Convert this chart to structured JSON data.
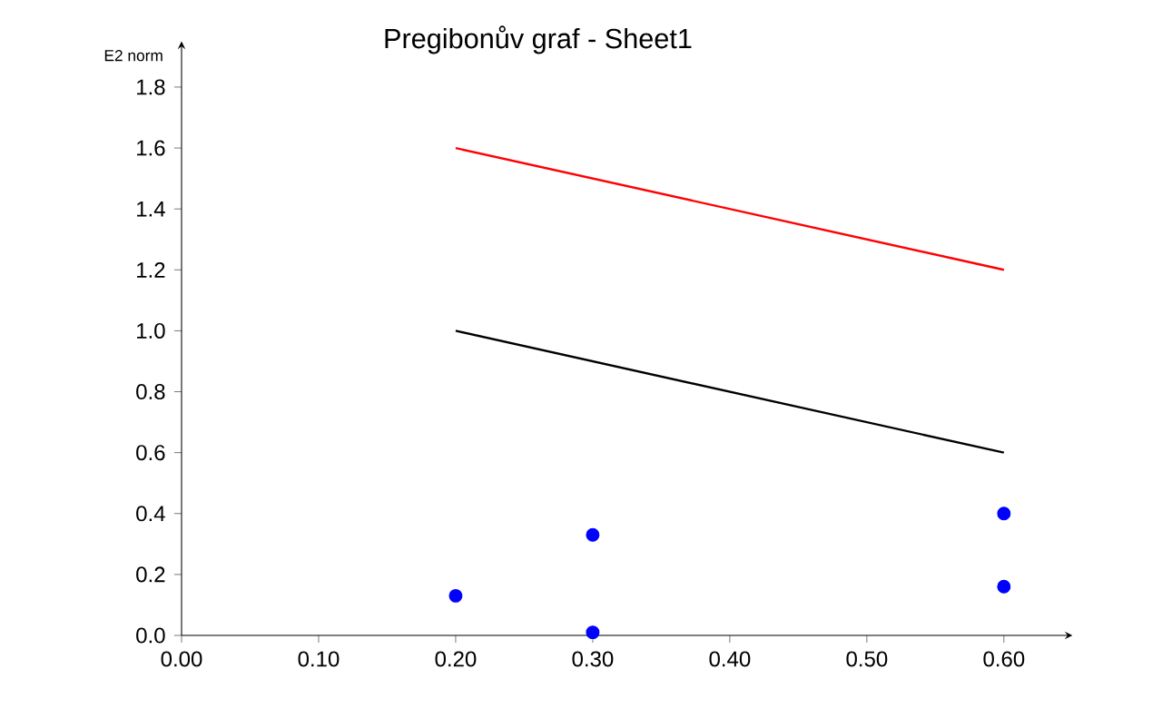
{
  "chart_data": {
    "type": "line",
    "title": "Pregibonův graf - Sheet1",
    "ylabel": "E2 norm",
    "xlim": [
      0,
      0.65
    ],
    "ylim": [
      0,
      1.95
    ],
    "xticks": [
      {
        "value": 0,
        "label": "0.00"
      },
      {
        "value": 0.1,
        "label": "0.10"
      },
      {
        "value": 0.2,
        "label": "0.20"
      },
      {
        "value": 0.3,
        "label": "0.30"
      },
      {
        "value": 0.4,
        "label": "0.40"
      },
      {
        "value": 0.5,
        "label": "0.50"
      },
      {
        "value": 0.6,
        "label": "0.60"
      }
    ],
    "yticks": [
      {
        "value": 0,
        "label": "0.0"
      },
      {
        "value": 0.2,
        "label": "0.2"
      },
      {
        "value": 0.4,
        "label": "0.4"
      },
      {
        "value": 0.6,
        "label": "0.6"
      },
      {
        "value": 0.8,
        "label": "0.8"
      },
      {
        "value": 1,
        "label": "1.0"
      },
      {
        "value": 1.2,
        "label": "1.2"
      },
      {
        "value": 1.4,
        "label": "1.4"
      },
      {
        "value": 1.6,
        "label": "1.6"
      },
      {
        "value": 1.8,
        "label": "1.8"
      }
    ],
    "series": [
      {
        "color": "#ff0000",
        "x": [
          0.2,
          0.6
        ],
        "values": [
          1.6,
          1.2
        ]
      },
      {
        "color": "#000000",
        "x": [
          0.2,
          0.6
        ],
        "values": [
          1.0,
          0.6
        ]
      },
      {
        "type": "scatter",
        "color": "#0000ff",
        "x": [
          0.2,
          0.3,
          0.3,
          0.6,
          0.6
        ],
        "values": [
          0.13,
          0.33,
          0.01,
          0.4,
          0.16
        ]
      }
    ]
  }
}
